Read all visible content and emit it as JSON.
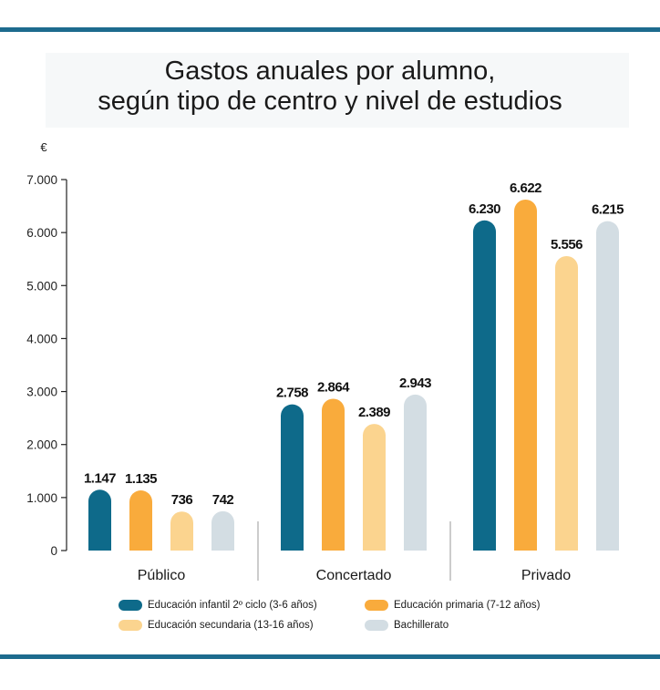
{
  "title": {
    "line1": "Gastos anuales por alumno,",
    "line2": "según tipo de centro y nivel de estudios"
  },
  "colors": {
    "infantil": "#0e6a8a",
    "primaria": "#f9ab3c",
    "secundaria": "#fbd48f",
    "bachillerato": "#d3dde3",
    "rule": "#1d6b8e"
  },
  "chart_data": {
    "type": "bar",
    "title": "Gastos anuales por alumno, según tipo de centro y nivel de estudios",
    "ylabel": "€",
    "xlabel": "",
    "ylim": [
      0,
      7000
    ],
    "yticks": [
      0,
      1000,
      2000,
      3000,
      4000,
      5000,
      6000,
      7000
    ],
    "ytick_labels": [
      "0",
      "1.000",
      "2.000",
      "3.000",
      "4.000",
      "5.000",
      "6.000",
      "7.000"
    ],
    "categories": [
      "Público",
      "Concertado",
      "Privado"
    ],
    "series": [
      {
        "name": "Educación infantil 2º ciclo (3-6 años)",
        "color_key": "infantil",
        "values": [
          1147,
          2758,
          6230
        ],
        "labels": [
          "1.147",
          "2.758",
          "6.230"
        ]
      },
      {
        "name": "Educación primaria (7-12 años)",
        "color_key": "primaria",
        "values": [
          1135,
          2864,
          6622
        ],
        "labels": [
          "1.135",
          "2.864",
          "6.622"
        ]
      },
      {
        "name": "Educación secundaria (13-16 años)",
        "color_key": "secundaria",
        "values": [
          736,
          2389,
          5556
        ],
        "labels": [
          "736",
          "2.389",
          "5.556"
        ]
      },
      {
        "name": "Bachillerato",
        "color_key": "bachillerato",
        "values": [
          742,
          2943,
          6215
        ],
        "labels": [
          "742",
          "2.943",
          "6.215"
        ]
      }
    ],
    "legend_position": "bottom",
    "grid": false
  }
}
